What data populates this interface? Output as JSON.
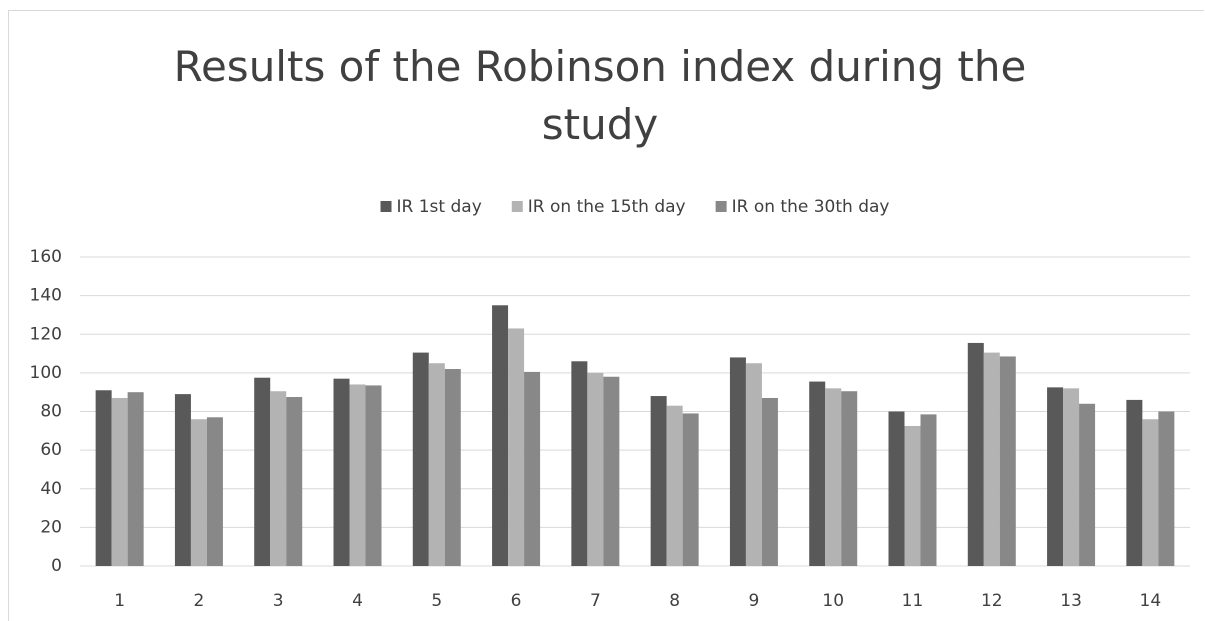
{
  "chart_data": {
    "type": "bar",
    "title": "Results of the Robinson index during the study",
    "categories": [
      "1",
      "2",
      "3",
      "4",
      "5",
      "6",
      "7",
      "8",
      "9",
      "10",
      "11",
      "12",
      "13",
      "14"
    ],
    "series": [
      {
        "name": "IR 1st day",
        "color": "#595959",
        "values": [
          91,
          89,
          97.5,
          97,
          110.5,
          135,
          106,
          88,
          108,
          95.5,
          80,
          115.5,
          92.5,
          86
        ]
      },
      {
        "name": "IR on the 15th day",
        "color": "#b3b3b3",
        "values": [
          87,
          76,
          90.5,
          94,
          105,
          123,
          100,
          83,
          105,
          92,
          72.5,
          110.5,
          92,
          76
        ]
      },
      {
        "name": "IR on the 30th day",
        "color": "#888888",
        "values": [
          90,
          77,
          87.5,
          93.5,
          102,
          100.5,
          98,
          79,
          87,
          90.5,
          78.5,
          108.5,
          84,
          80
        ]
      }
    ],
    "ylim": [
      0,
      160
    ],
    "yticks": [
      0,
      20,
      40,
      60,
      80,
      100,
      120,
      140,
      160
    ],
    "grid": true,
    "legend": "top"
  }
}
